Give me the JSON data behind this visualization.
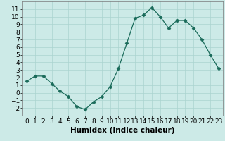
{
  "x": [
    0,
    1,
    2,
    3,
    4,
    5,
    6,
    7,
    8,
    9,
    10,
    11,
    12,
    13,
    14,
    15,
    16,
    17,
    18,
    19,
    20,
    21,
    22,
    23
  ],
  "y": [
    1.5,
    2.2,
    2.2,
    1.2,
    0.2,
    -0.5,
    -1.8,
    -2.2,
    -1.2,
    -0.5,
    0.8,
    3.2,
    6.5,
    9.8,
    10.2,
    11.2,
    10.0,
    8.5,
    9.5,
    9.5,
    8.5,
    7.0,
    5.0,
    3.2
  ],
  "line_color": "#1a6b5a",
  "marker": "D",
  "marker_size": 2.5,
  "bg_color": "#cceae7",
  "grid_color": "#aad4d0",
  "xlabel": "Humidex (Indice chaleur)",
  "xlim": [
    -0.5,
    23.5
  ],
  "ylim": [
    -3,
    12
  ],
  "yticks": [
    -2,
    -1,
    0,
    1,
    2,
    3,
    4,
    5,
    6,
    7,
    8,
    9,
    10,
    11
  ],
  "xticks": [
    0,
    1,
    2,
    3,
    4,
    5,
    6,
    7,
    8,
    9,
    10,
    11,
    12,
    13,
    14,
    15,
    16,
    17,
    18,
    19,
    20,
    21,
    22,
    23
  ],
  "tick_fontsize": 6.5,
  "xlabel_fontsize": 7.5
}
